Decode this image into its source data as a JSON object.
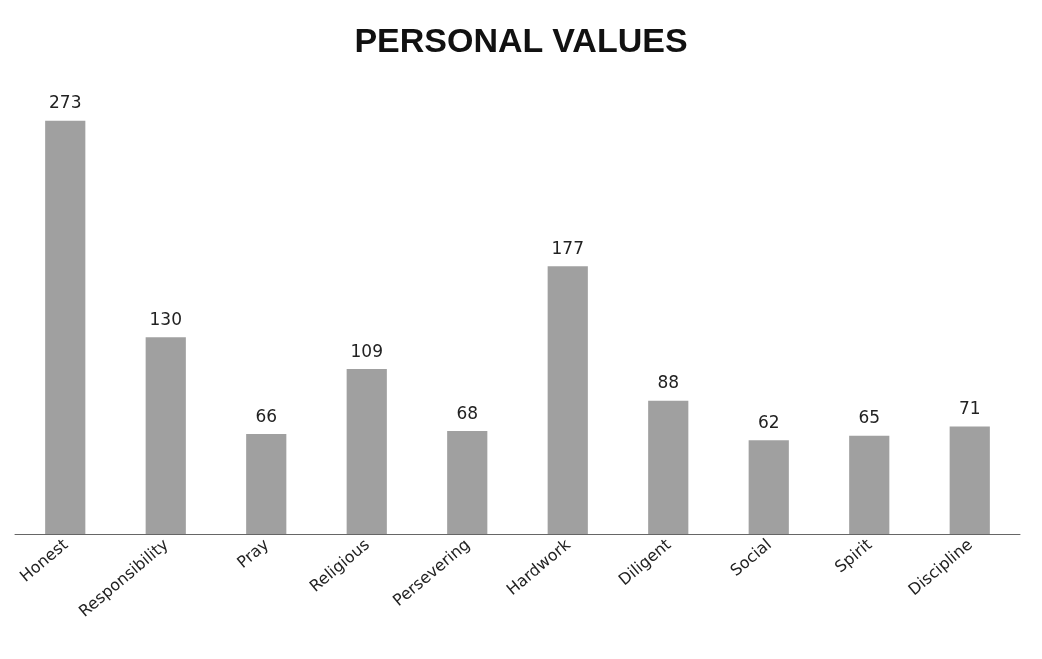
{
  "chart_data": {
    "type": "bar",
    "title": "PERSONAL VALUES",
    "categories": [
      "Honest",
      "Responsibility",
      "Pray",
      "Religious",
      "Persevering",
      "Hardwork",
      "Diligent",
      "Social",
      "Spirit",
      "Discipline"
    ],
    "values": [
      273,
      130,
      66,
      109,
      68,
      177,
      88,
      62,
      65,
      71
    ],
    "color": "#a0a0a0",
    "data_labels": true,
    "tick_labels": "x"
  }
}
